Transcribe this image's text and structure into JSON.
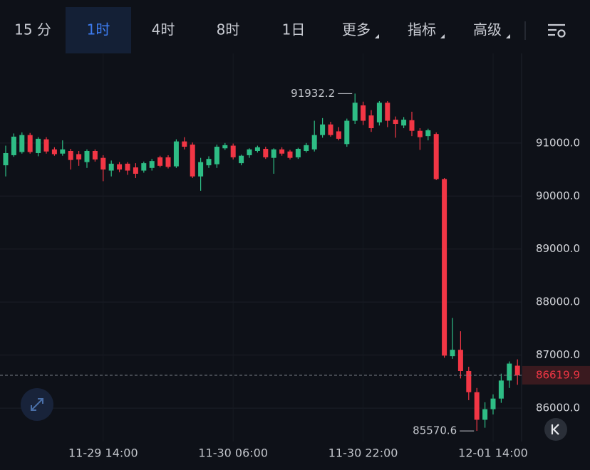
{
  "tabs": [
    "15 分",
    "1时",
    "4时",
    "8时",
    "1日",
    "更多",
    "指标",
    "高级"
  ],
  "selected_tab": 1,
  "chart_data": {
    "type": "candlestick",
    "categories": [
      null,
      null,
      null,
      null,
      null,
      null,
      null,
      null,
      null,
      null,
      null,
      null,
      "11-29 14:00",
      null,
      null,
      null,
      null,
      null,
      null,
      null,
      null,
      null,
      null,
      null,
      null,
      null,
      null,
      null,
      "11-30 06:00",
      null,
      null,
      null,
      null,
      null,
      null,
      null,
      null,
      null,
      null,
      null,
      null,
      null,
      null,
      null,
      "11-30 22:00",
      null,
      null,
      null,
      null,
      null,
      null,
      null,
      null,
      null,
      null,
      null,
      null,
      null,
      null,
      null,
      "12-01 14:00",
      null,
      null,
      null
    ],
    "open": [
      90580,
      90770,
      90830,
      91150,
      90810,
      91070,
      90880,
      90800,
      90850,
      90790,
      90640,
      90850,
      90720,
      90480,
      90600,
      90610,
      90540,
      90480,
      90530,
      90730,
      90730,
      90560,
      91030,
      90970,
      90370,
      90580,
      90600,
      90900,
      90950,
      90620,
      90770,
      90850,
      90890,
      90720,
      90880,
      90840,
      90730,
      90850,
      90880,
      91150,
      91350,
      91220,
      90980,
      91420,
      91710,
      91520,
      91390,
      91760,
      91440,
      91330,
      91430,
      91230,
      91130,
      91170,
      90320,
      86980,
      87100,
      86700,
      86300,
      85780,
      85980,
      86180,
      86520,
      86800
    ],
    "high": [
      90950,
      91180,
      91200,
      91190,
      91110,
      91110,
      90920,
      91050,
      90890,
      90850,
      90880,
      90880,
      90770,
      90670,
      90640,
      90640,
      90620,
      90650,
      90700,
      90760,
      90770,
      91070,
      91110,
      91010,
      90720,
      90750,
      90970,
      91000,
      90990,
      90780,
      90900,
      90950,
      90930,
      90900,
      90920,
      90870,
      90910,
      91000,
      91420,
      91470,
      91400,
      91300,
      91460,
      91932.2,
      91780,
      91620,
      91790,
      91790,
      91500,
      91490,
      91590,
      91280,
      91270,
      91200,
      90340,
      87700,
      87450,
      86780,
      86380,
      86110,
      86260,
      86650,
      86880,
      86920
    ],
    "low": [
      90370,
      90740,
      90800,
      90800,
      90750,
      90800,
      90760,
      90760,
      90500,
      90570,
      90530,
      90650,
      90280,
      90370,
      90450,
      90400,
      90340,
      90440,
      90480,
      90540,
      90520,
      90530,
      90880,
      90340,
      90100,
      90530,
      90530,
      90870,
      90690,
      90580,
      90720,
      90820,
      90700,
      90420,
      90760,
      90690,
      90700,
      90820,
      90840,
      91100,
      91120,
      91050,
      90930,
      91360,
      91340,
      91210,
      91330,
      91300,
      91100,
      91280,
      91130,
      90870,
      91050,
      90300,
      86950,
      86930,
      86560,
      86150,
      85570.6,
      85630,
      85880,
      86100,
      86380,
      86440
    ],
    "close": [
      90810,
      91120,
      91150,
      90830,
      91080,
      90840,
      90790,
      90880,
      90680,
      90690,
      90850,
      90690,
      90500,
      90610,
      90500,
      90480,
      90420,
      90620,
      90660,
      90570,
      90550,
      91030,
      90930,
      90370,
      90640,
      90700,
      90930,
      90960,
      90730,
      90760,
      90880,
      90920,
      90730,
      90880,
      90800,
      90720,
      90890,
      90960,
      91150,
      91350,
      91150,
      91080,
      91420,
      91760,
      91420,
      91280,
      91760,
      91420,
      91360,
      91440,
      91230,
      91110,
      91240,
      90320,
      86990,
      87100,
      86700,
      86300,
      85780,
      85980,
      86180,
      86520,
      86840,
      86619.9
    ],
    "up_color": "#2ebd85",
    "down_color": "#f23645",
    "ylim": [
      85370,
      92690
    ],
    "yticks": [
      {
        "value": 86000,
        "label": "86000.0"
      },
      {
        "value": 87000,
        "label": "87000.0"
      },
      {
        "value": 88000,
        "label": "88000.0"
      },
      {
        "value": 89000,
        "label": "89000.0"
      },
      {
        "value": 90000,
        "label": "90000.0"
      },
      {
        "value": 91000,
        "label": "91000.0"
      }
    ],
    "grid": true,
    "high_marker_index": 43,
    "low_marker_index": 58
  }
}
